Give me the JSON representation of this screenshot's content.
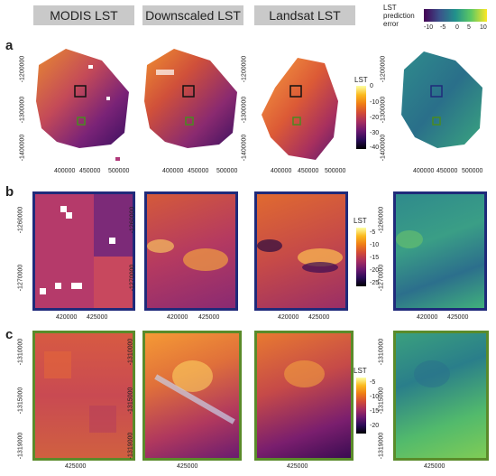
{
  "headers": {
    "modis": "MODIS LST",
    "downscaled": "Downscaled LST",
    "landsat": "Landsat LST"
  },
  "row_labels": {
    "a": "a",
    "b": "b",
    "c": "c"
  },
  "error_legend": {
    "title_line1": "LST",
    "title_line2": "prediction",
    "title_line3": "error",
    "ticks": [
      "-10",
      "-5",
      "0",
      "5",
      "10"
    ]
  },
  "legend_a": {
    "title": "LST",
    "ticks": [
      "0",
      "-10",
      "-20",
      "-30",
      "-40"
    ]
  },
  "legend_b": {
    "title": "LST",
    "ticks": [
      "-5",
      "-10",
      "-15",
      "-20",
      "-25"
    ]
  },
  "legend_c": {
    "title": "LST",
    "ticks": [
      "-5",
      "-10",
      "-15",
      "-20"
    ]
  },
  "row_a_axes": {
    "y": [
      "-1200000",
      "-1300000",
      "-1400000"
    ],
    "x": [
      "400000",
      "450000",
      "500000"
    ]
  },
  "row_b_axes": {
    "y": [
      "-1260000",
      "-1270000"
    ],
    "x": [
      "420000",
      "425000"
    ]
  },
  "row_c_axes": {
    "y": [
      "-1310000",
      "-1315000",
      "-1319000"
    ],
    "x": [
      "425000"
    ]
  },
  "colors": {
    "blue_frame": "#1f2a7a",
    "green_frame": "#5a8b2a",
    "header_bg": "#c9c9c9"
  }
}
